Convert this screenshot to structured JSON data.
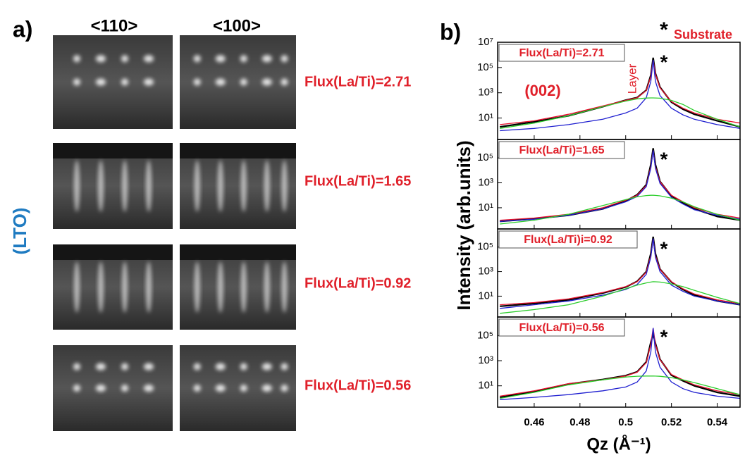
{
  "panel_a": {
    "label": "a)",
    "columns": [
      "<110>",
      "<100>"
    ],
    "side_label": "(LTO)",
    "rows": [
      "Flux(La/Ti)=2.71",
      "Flux(La/Ti)=1.65",
      "Flux(La/Ti)=0.92",
      "Flux(La/Ti)=0.56"
    ]
  },
  "panel_b": {
    "label": "b)",
    "ylabel": "Intensity (arb.units)",
    "xlabel": "Qz (Å⁻¹)",
    "top_star": "*",
    "substrate_label": "Substrate"
  },
  "chart_data": [
    {
      "type": "line",
      "title": "Flux(La/Ti)=2.71",
      "peak_marker": "*",
      "miller_index": "(002)",
      "layer_label": "Layer",
      "log_scale": true,
      "xlim": [
        0.444,
        0.55
      ],
      "ylim": [
        0.2,
        10000000
      ],
      "yticks": [
        {
          "value": 10,
          "label": "10¹"
        },
        {
          "value": 1000,
          "label": "10³"
        },
        {
          "value": 100000,
          "label": "10⁵"
        },
        {
          "value": 10000000,
          "label": "10⁷"
        }
      ],
      "x": [
        0.445,
        0.46,
        0.475,
        0.49,
        0.5,
        0.505,
        0.509,
        0.511,
        0.512,
        0.513,
        0.515,
        0.52,
        0.525,
        0.53,
        0.54,
        0.55
      ],
      "series": [
        {
          "color": "#000000",
          "values": [
            2,
            5,
            15,
            80,
            260,
            420,
            1600,
            25000,
            600000,
            35000,
            2800,
            180,
            50,
            20,
            6,
            2
          ]
        },
        {
          "color": "#e8112d",
          "values": [
            3,
            6,
            20,
            90,
            250,
            400,
            1500,
            20000,
            400000,
            30000,
            2500,
            200,
            60,
            25,
            8,
            4
          ]
        },
        {
          "color": "#1f1fd0",
          "values": [
            1,
            1.5,
            3,
            8,
            25,
            60,
            400,
            8000,
            400000,
            8000,
            600,
            60,
            18,
            8,
            3,
            1.5
          ]
        },
        {
          "color": "#2ccd2c",
          "values": [
            1.5,
            4,
            15,
            80,
            220,
            330,
            380,
            390,
            390,
            385,
            370,
            250,
            120,
            40,
            8,
            2
          ]
        }
      ]
    },
    {
      "type": "line",
      "title": "Flux(La/Ti)=1.65",
      "peak_marker": "*",
      "log_scale": true,
      "xlim": [
        0.444,
        0.55
      ],
      "ylim": [
        0.2,
        3000000
      ],
      "yticks": [
        {
          "value": 10,
          "label": "10¹"
        },
        {
          "value": 1000,
          "label": "10³"
        },
        {
          "value": 100000,
          "label": "10⁵"
        }
      ],
      "x": [
        0.445,
        0.46,
        0.475,
        0.49,
        0.5,
        0.505,
        0.509,
        0.511,
        0.512,
        0.513,
        0.515,
        0.52,
        0.525,
        0.53,
        0.54,
        0.55
      ],
      "series": [
        {
          "color": "#000000",
          "values": [
            0.8,
            1.3,
            2.5,
            8,
            35,
            110,
            700,
            30000,
            600000,
            30000,
            1300,
            90,
            25,
            8,
            2,
            1
          ]
        },
        {
          "color": "#e8112d",
          "values": [
            1,
            1.5,
            3,
            10,
            40,
            100,
            600,
            20000,
            400000,
            20000,
            1200,
            100,
            30,
            10,
            3,
            1.5
          ]
        },
        {
          "color": "#1f1fd0",
          "values": [
            0.8,
            1.2,
            2.5,
            8,
            30,
            80,
            500,
            15000,
            400000,
            15000,
            900,
            70,
            20,
            7,
            2.5,
            1.2
          ]
        },
        {
          "color": "#2ccd2c",
          "values": [
            0.5,
            1,
            3,
            15,
            45,
            75,
            95,
            100,
            100,
            98,
            90,
            60,
            30,
            12,
            3,
            1
          ]
        }
      ]
    },
    {
      "type": "line",
      "title": "Flux(La/Ti)i=0.92",
      "peak_marker": "*",
      "log_scale": true,
      "xlim": [
        0.444,
        0.55
      ],
      "ylim": [
        0.2,
        3000000
      ],
      "yticks": [
        {
          "value": 10,
          "label": "10¹"
        },
        {
          "value": 1000,
          "label": "10³"
        },
        {
          "value": 100000,
          "label": "10⁵"
        }
      ],
      "x": [
        0.445,
        0.46,
        0.475,
        0.49,
        0.5,
        0.505,
        0.509,
        0.511,
        0.512,
        0.513,
        0.515,
        0.52,
        0.525,
        0.53,
        0.54,
        0.55
      ],
      "series": [
        {
          "color": "#000000",
          "values": [
            1.5,
            2.5,
            5,
            18,
            55,
            160,
            1000,
            30000,
            700000,
            30000,
            1600,
            140,
            35,
            12,
            4,
            2
          ]
        },
        {
          "color": "#e8112d",
          "values": [
            2,
            3,
            6,
            20,
            60,
            150,
            900,
            20000,
            500000,
            20000,
            1500,
            150,
            40,
            15,
            5,
            2.5
          ]
        },
        {
          "color": "#1f1fd0",
          "values": [
            1,
            2,
            4,
            12,
            35,
            90,
            600,
            15000,
            500000,
            15000,
            1000,
            80,
            25,
            10,
            4,
            2
          ]
        },
        {
          "color": "#2ccd2c",
          "values": [
            0.4,
            0.8,
            2,
            10,
            40,
            80,
            120,
            140,
            150,
            148,
            140,
            100,
            60,
            30,
            8,
            2.5
          ]
        }
      ]
    },
    {
      "type": "line",
      "title": "Flux(La/Ti)=0.56",
      "peak_marker": "*",
      "log_scale": true,
      "xlim": [
        0.444,
        0.55
      ],
      "ylim": [
        0.2,
        3000000
      ],
      "yticks": [
        {
          "value": 10,
          "label": "10¹"
        },
        {
          "value": 1000,
          "label": "10³"
        },
        {
          "value": 100000,
          "label": "10⁵"
        }
      ],
      "xticks": [
        0.46,
        0.48,
        0.5,
        0.52,
        0.54
      ],
      "x": [
        0.445,
        0.46,
        0.475,
        0.49,
        0.5,
        0.505,
        0.509,
        0.511,
        0.512,
        0.513,
        0.515,
        0.52,
        0.525,
        0.53,
        0.54,
        0.55
      ],
      "series": [
        {
          "color": "#000000",
          "values": [
            1.2,
            3.5,
            14,
            32,
            65,
            130,
            800,
            30000,
            120000,
            25000,
            1300,
            70,
            25,
            10,
            3,
            1.5
          ]
        },
        {
          "color": "#e8112d",
          "values": [
            1.5,
            4,
            15,
            30,
            60,
            120,
            700,
            20000,
            400000,
            20000,
            1200,
            80,
            30,
            12,
            4,
            2
          ]
        },
        {
          "color": "#1f1fd0",
          "values": [
            0.8,
            1.2,
            2,
            4,
            8,
            20,
            150,
            5000,
            400000,
            5000,
            300,
            20,
            6,
            3,
            1.5,
            1
          ]
        },
        {
          "color": "#2ccd2c",
          "values": [
            1,
            3,
            12,
            30,
            50,
            58,
            60,
            60,
            60,
            59,
            57,
            45,
            30,
            18,
            6,
            2
          ]
        }
      ]
    }
  ]
}
